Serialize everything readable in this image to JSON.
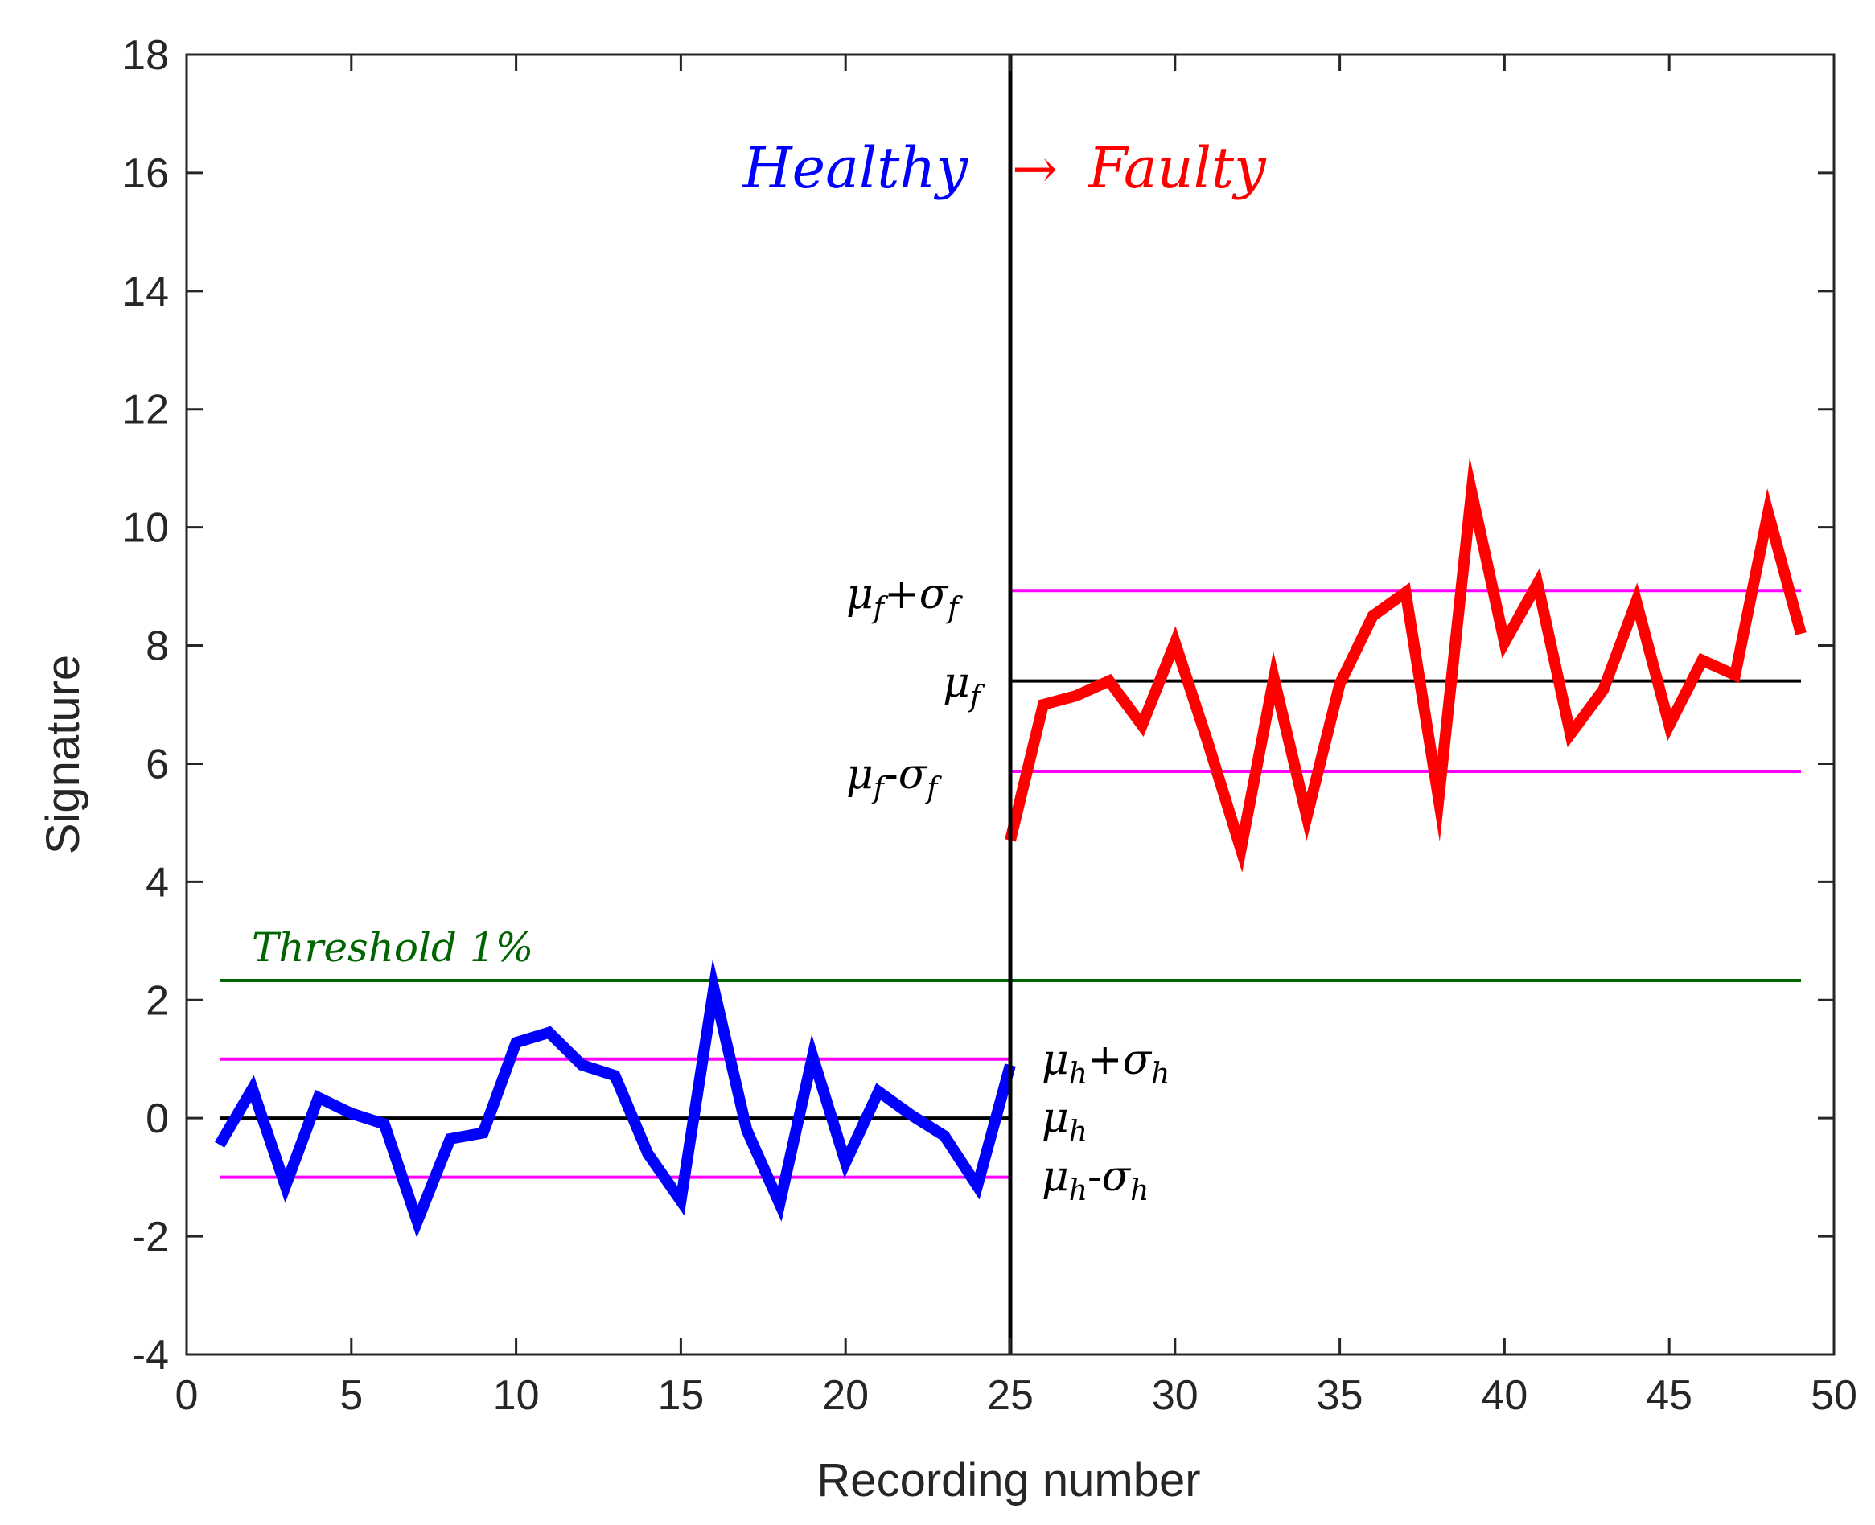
{
  "chart_data": {
    "type": "line",
    "xlabel": "Recording number",
    "ylabel": "Signature",
    "xlim": [
      0,
      50
    ],
    "ylim": [
      -4,
      18
    ],
    "xticks": [
      0,
      5,
      10,
      15,
      20,
      25,
      30,
      35,
      40,
      45,
      50
    ],
    "yticks": [
      -4,
      -2,
      0,
      2,
      4,
      6,
      8,
      10,
      12,
      14,
      16,
      18
    ],
    "grid": false,
    "series": [
      {
        "name": "Healthy",
        "color": "#0000ff",
        "x": [
          1,
          2,
          3,
          4,
          5,
          6,
          7,
          8,
          9,
          10,
          11,
          12,
          13,
          14,
          15,
          16,
          17,
          18,
          19,
          20,
          21,
          22,
          23,
          24,
          25
        ],
        "values": [
          -0.45,
          0.5,
          -1.15,
          0.35,
          0.08,
          -0.1,
          -1.75,
          -0.35,
          -0.25,
          1.28,
          1.45,
          0.9,
          0.72,
          -0.6,
          -1.4,
          2.2,
          -0.2,
          -1.45,
          1.05,
          -0.75,
          0.45,
          0.05,
          -0.3,
          -1.15,
          0.9
        ]
      },
      {
        "name": "Faulty",
        "color": "#ff0000",
        "x": [
          25,
          26,
          27,
          28,
          29,
          30,
          31,
          32,
          33,
          34,
          35,
          36,
          37,
          38,
          39,
          40,
          41,
          42,
          43,
          44,
          45,
          46,
          47,
          48,
          49
        ],
        "values": [
          4.7,
          7.0,
          7.15,
          7.4,
          6.65,
          8.05,
          6.35,
          4.55,
          7.45,
          5.1,
          7.35,
          8.5,
          8.9,
          5.4,
          10.6,
          8.05,
          9.05,
          6.5,
          7.25,
          8.75,
          6.65,
          7.75,
          7.5,
          10.25,
          8.2
        ]
      }
    ],
    "reference_lines": [
      {
        "id": "mu_f_plus",
        "y": 8.93,
        "x_range": [
          25,
          49
        ],
        "color": "#ff00ff"
      },
      {
        "id": "mu_f",
        "y": 7.4,
        "x_range": [
          25,
          49
        ],
        "color": "#000000"
      },
      {
        "id": "mu_f_minus",
        "y": 5.87,
        "x_range": [
          25,
          49
        ],
        "color": "#ff00ff"
      },
      {
        "id": "mu_h_plus",
        "y": 1.0,
        "x_range": [
          1,
          25
        ],
        "color": "#ff00ff"
      },
      {
        "id": "mu_h",
        "y": 0.0,
        "x_range": [
          1,
          25
        ],
        "color": "#000000"
      },
      {
        "id": "mu_h_minus",
        "y": -1.0,
        "x_range": [
          1,
          25
        ],
        "color": "#ff00ff"
      },
      {
        "id": "threshold",
        "y": 2.33,
        "x_range": [
          1,
          49
        ],
        "color": "#006400"
      }
    ],
    "change_point_x": 25,
    "annotations": {
      "healthy": "Healthy",
      "arrow": "→",
      "faulty": "Faulty",
      "threshold": "Threshold 1%",
      "mu": "μ",
      "sigma": "σ",
      "sub_f": "f",
      "sub_h": "h",
      "plus": "+",
      "minus": "-"
    }
  },
  "colors": {
    "healthy": "#0000ff",
    "faulty": "#ff0000",
    "threshold": "#006400",
    "band": "#ff00ff",
    "mean": "#000000",
    "axis": "#262626"
  }
}
